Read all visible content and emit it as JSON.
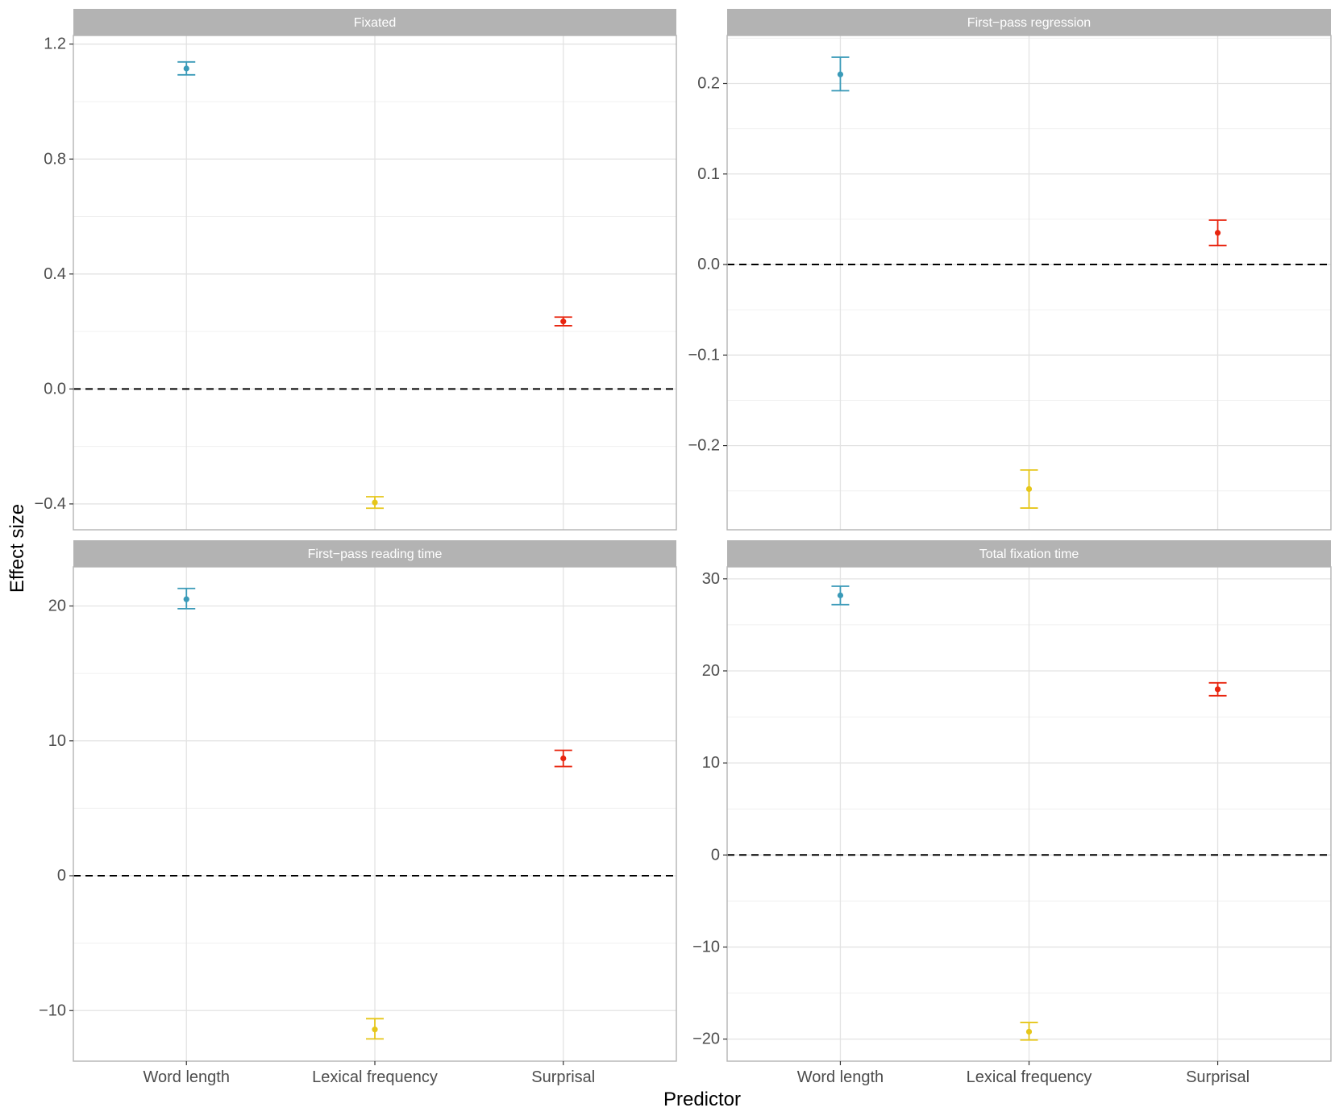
{
  "chart_data": {
    "type": "errorbar",
    "xlabel": "Predictor",
    "ylabel": "Effect size",
    "reference_line": 0,
    "categories": [
      "Word length",
      "Lexical frequency",
      "Surprisal"
    ],
    "colors": {
      "Word length": "#3a9ab8",
      "Lexical frequency": "#e6c619",
      "Surprisal": "#e8250f"
    },
    "panels": [
      {
        "title": "Fixated",
        "ylim": [
          -0.49,
          1.23
        ],
        "yticks": [
          -0.4,
          0.0,
          0.4,
          0.8,
          1.2
        ],
        "ytick_labels": [
          "−0.4",
          "0.0",
          "0.4",
          "0.8",
          "1.2"
        ],
        "points": [
          {
            "category": "Word length",
            "estimate": 1.115,
            "lower": 1.093,
            "upper": 1.138
          },
          {
            "category": "Lexical frequency",
            "estimate": -0.395,
            "lower": -0.415,
            "upper": -0.375
          },
          {
            "category": "Surprisal",
            "estimate": 0.235,
            "lower": 0.22,
            "upper": 0.25
          }
        ]
      },
      {
        "title": "First−pass regression",
        "ylim": [
          -0.293,
          0.253
        ],
        "yticks": [
          -0.2,
          -0.1,
          0.0,
          0.1,
          0.2
        ],
        "ytick_labels": [
          "−0.2",
          "−0.1",
          "0.0",
          "0.1",
          "0.2"
        ],
        "points": [
          {
            "category": "Word length",
            "estimate": 0.21,
            "lower": 0.192,
            "upper": 0.229
          },
          {
            "category": "Lexical frequency",
            "estimate": -0.248,
            "lower": -0.269,
            "upper": -0.227
          },
          {
            "category": "Surprisal",
            "estimate": 0.035,
            "lower": 0.021,
            "upper": 0.049
          }
        ]
      },
      {
        "title": "First−pass reading time",
        "ylim": [
          -13.75,
          22.9
        ],
        "yticks": [
          -10,
          0,
          10,
          20
        ],
        "ytick_labels": [
          "−10",
          "0",
          "10",
          "20"
        ],
        "points": [
          {
            "category": "Word length",
            "estimate": 20.5,
            "lower": 19.8,
            "upper": 21.3
          },
          {
            "category": "Lexical frequency",
            "estimate": -11.4,
            "lower": -12.1,
            "upper": -10.6
          },
          {
            "category": "Surprisal",
            "estimate": 8.7,
            "lower": 8.1,
            "upper": 9.3
          }
        ]
      },
      {
        "title": "Total fixation time",
        "ylim": [
          -22.4,
          31.3
        ],
        "yticks": [
          -20,
          -10,
          0,
          10,
          20,
          30
        ],
        "ytick_labels": [
          "−20",
          "−10",
          "0",
          "10",
          "20",
          "30"
        ],
        "points": [
          {
            "category": "Word length",
            "estimate": 28.2,
            "lower": 27.2,
            "upper": 29.2
          },
          {
            "category": "Lexical frequency",
            "estimate": -19.2,
            "lower": -20.1,
            "upper": -18.2
          },
          {
            "category": "Surprisal",
            "estimate": 18.0,
            "lower": 17.3,
            "upper": 18.7
          }
        ]
      }
    ]
  }
}
